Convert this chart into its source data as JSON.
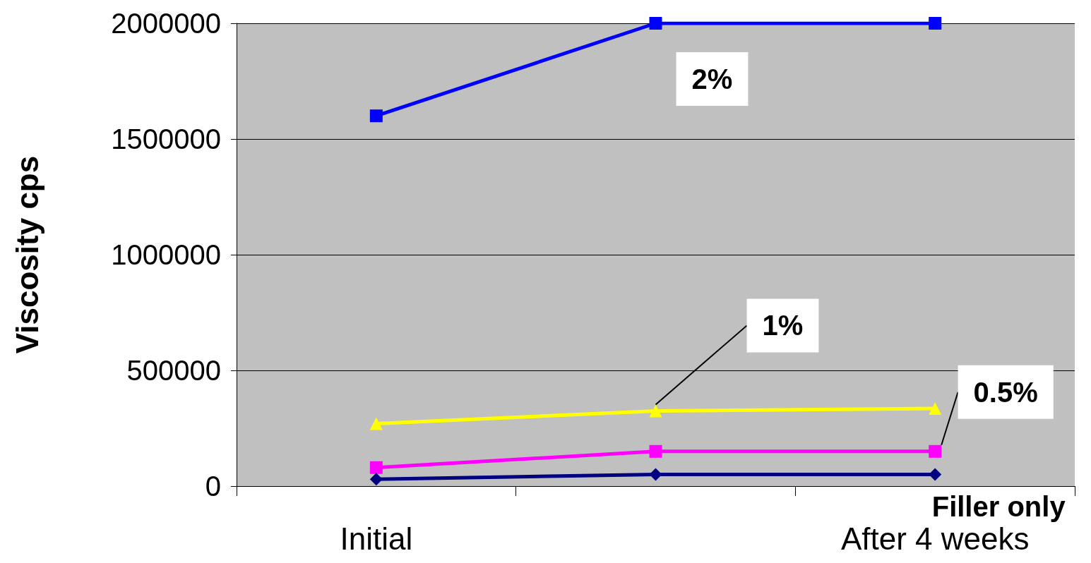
{
  "chart_data": {
    "type": "line",
    "ylabel": "Viscosity cps",
    "categories": [
      "Initial",
      null,
      "After 4 weeks"
    ],
    "series": [
      {
        "name": "2%",
        "color": "#0000ff",
        "marker": "square",
        "values": [
          1600000,
          2000000,
          2000000
        ]
      },
      {
        "name": "1%",
        "color": "#ffff00",
        "marker": "triangle",
        "values": [
          270000,
          325000,
          335000
        ]
      },
      {
        "name": "0.5%",
        "color": "#ff00ff",
        "marker": "square",
        "values": [
          80000,
          150000,
          150000
        ]
      },
      {
        "name": "Filler only",
        "color": "#000080",
        "marker": "diamond",
        "values": [
          30000,
          50000,
          50000
        ]
      }
    ],
    "ylim": [
      0,
      2000000
    ],
    "yticks": [
      0,
      500000,
      1000000,
      1500000,
      2000000
    ],
    "grid": "y",
    "legend": false,
    "line_style": "solid"
  }
}
